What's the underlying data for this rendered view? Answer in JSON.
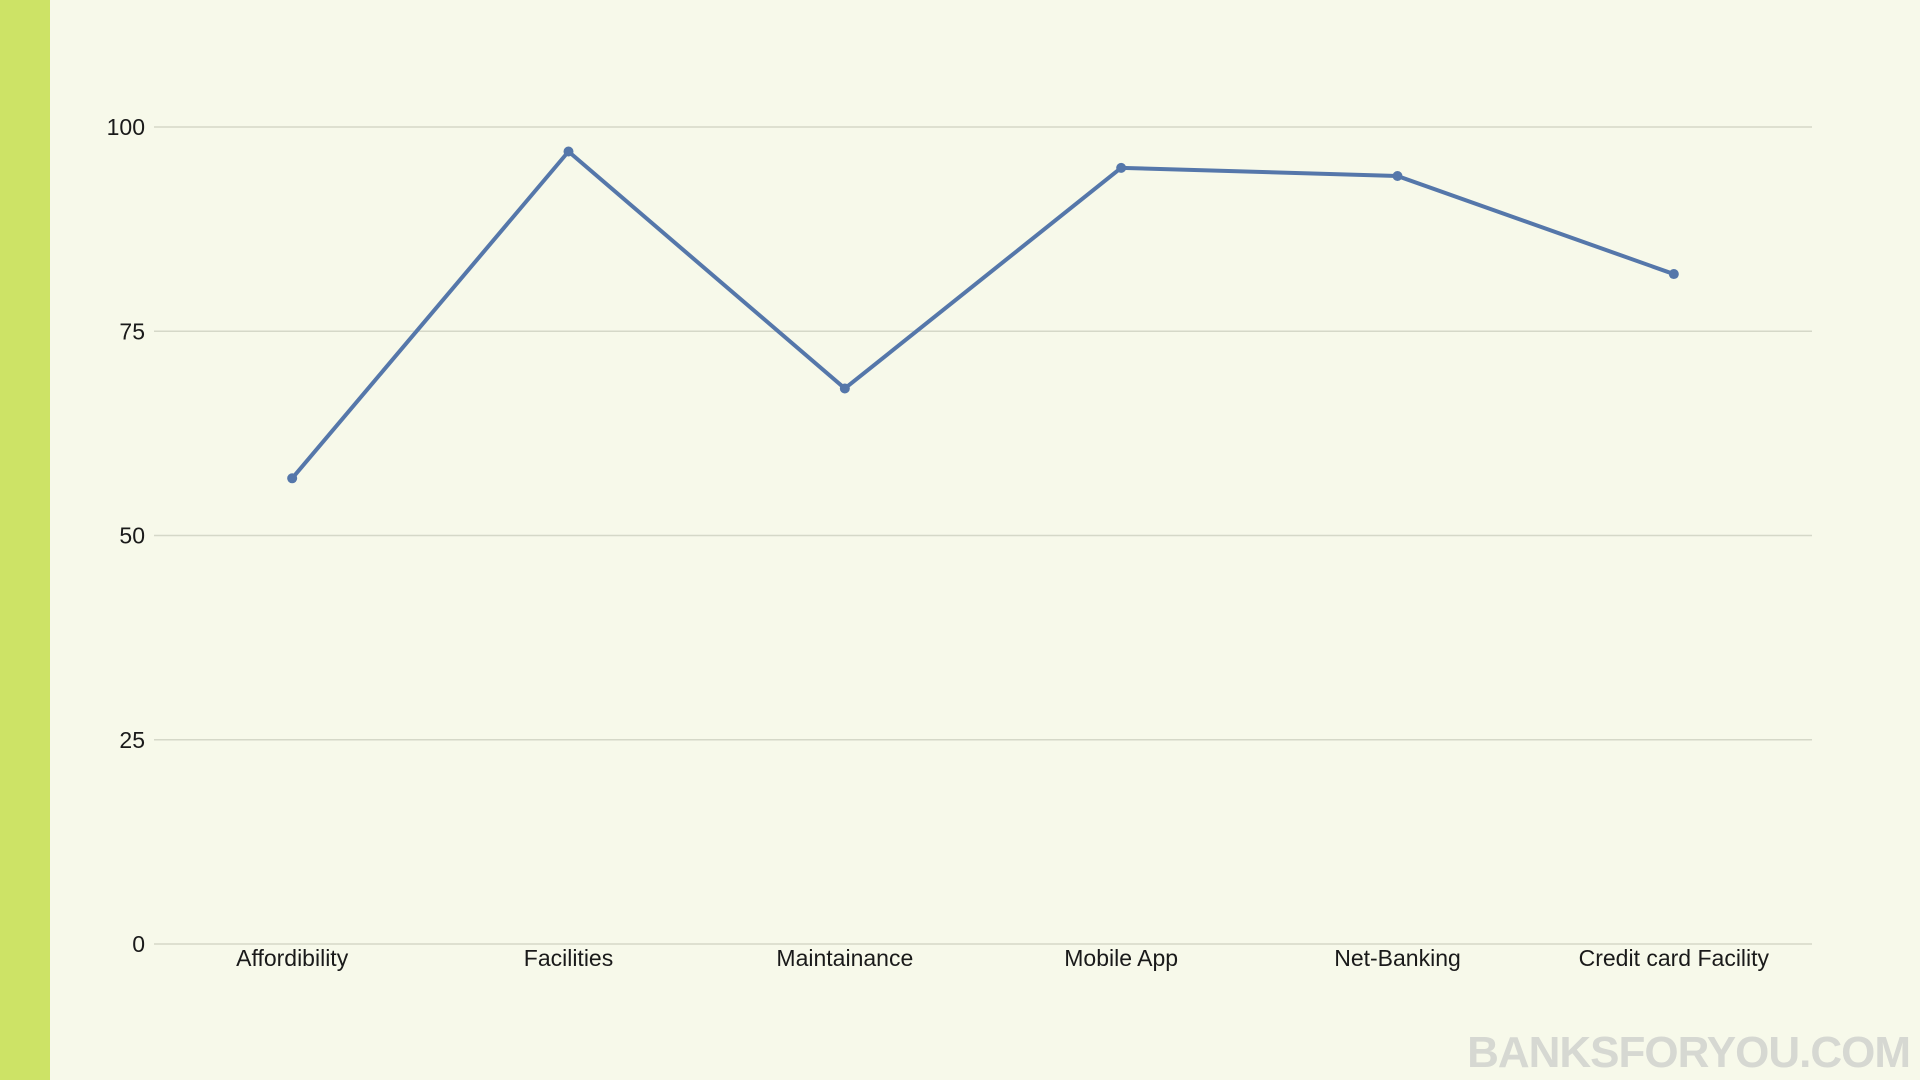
{
  "theme": {
    "background": "#f7f9ea",
    "side_bar_color": "#cde366",
    "line_color": "#5577aa",
    "grid_color": "#d5d8c8",
    "text_color": "#1a1a1a"
  },
  "watermark": {
    "text": "BANKSFORYOU.COM"
  },
  "chart_data": {
    "type": "line",
    "categories": [
      "Affordibility",
      "Facilities",
      "Maintainance",
      "Mobile App",
      "Net-Banking",
      "Credit card Facility"
    ],
    "series": [
      {
        "values": [
          57,
          97,
          68,
          95,
          94,
          82
        ]
      }
    ],
    "title": "",
    "xlabel": "",
    "ylabel": "",
    "ylim": [
      0,
      100
    ],
    "yticks": [
      0,
      25,
      50,
      75,
      100
    ],
    "grid": true,
    "legend": "none",
    "markers": true
  }
}
